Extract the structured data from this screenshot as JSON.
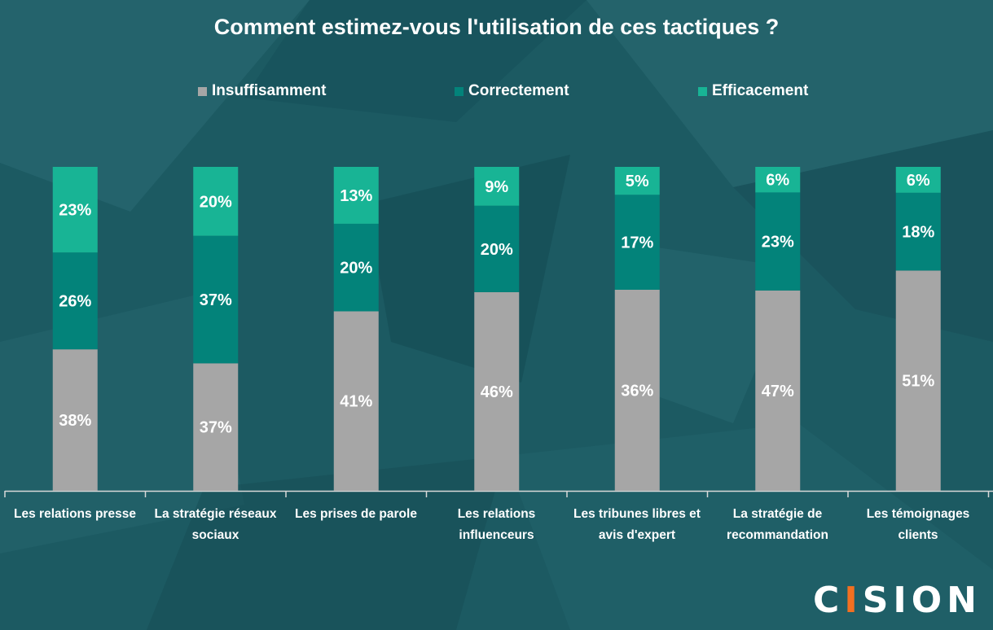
{
  "title": "Comment estimez-vous l'utilisation de ces tactiques ?",
  "colors": {
    "insuffisamment": "#a6a6a6",
    "correctement": "#03837a",
    "efficacement": "#18b495"
  },
  "logo": {
    "text": "CISION"
  },
  "chart_data": {
    "type": "bar",
    "stacked": true,
    "categories": [
      "Les relations presse",
      "La stratégie réseaux sociaux",
      "Les prises de parole",
      "Les relations influenceurs",
      "Les tribunes libres et avis d'expert",
      "La stratégie de recommandation",
      "Les témoignages clients"
    ],
    "series": [
      {
        "name": "Insuffisamment",
        "values": [
          38,
          37,
          41,
          46,
          36,
          47,
          51
        ]
      },
      {
        "name": "Correctement",
        "values": [
          26,
          37,
          20,
          20,
          17,
          23,
          18
        ]
      },
      {
        "name": "Efficacement",
        "values": [
          23,
          20,
          13,
          9,
          5,
          6,
          6
        ]
      }
    ],
    "data_labels": [
      [
        "38%",
        "37%",
        "41%",
        "46%",
        "36%",
        "47%",
        "51%"
      ],
      [
        "26%",
        "37%",
        "20%",
        "20%",
        "17%",
        "23%",
        "18%"
      ],
      [
        "23%",
        "20%",
        "13%",
        "9%",
        "5%",
        "6%",
        "6%"
      ]
    ],
    "legend_position": "top",
    "grid": false
  }
}
